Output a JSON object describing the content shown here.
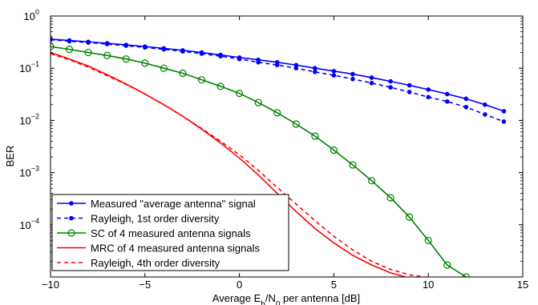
{
  "chart_data": {
    "type": "line",
    "xlabel": "Average E_b/N_0 per antenna [dB]",
    "ylabel": "BER",
    "xlim": [
      -10,
      15
    ],
    "ylim": [
      1e-05,
      1
    ],
    "yscale": "log",
    "grid": false,
    "legend_position": "bottom-left",
    "x_ticks": [
      "−10",
      "−5",
      "0",
      "5",
      "10",
      "15"
    ],
    "y_ticks": [
      {
        "base": "10",
        "exp": "0"
      },
      {
        "base": "10",
        "exp": "−1"
      },
      {
        "base": "10",
        "exp": "−2"
      },
      {
        "base": "10",
        "exp": "−3"
      },
      {
        "base": "10",
        "exp": "−4"
      }
    ],
    "series": [
      {
        "name": "Measured \"average antenna\" signal",
        "color": "#0000ff",
        "style": "solid",
        "marker": "dot",
        "x": [
          -10,
          -9,
          -8,
          -7,
          -6,
          -5,
          -4,
          -3,
          -2,
          -1,
          0,
          1,
          2,
          3,
          4,
          5,
          6,
          7,
          8,
          9,
          10,
          11,
          12,
          13,
          14
        ],
        "y": [
          0.36,
          0.34,
          0.32,
          0.3,
          0.28,
          0.26,
          0.24,
          0.22,
          0.2,
          0.18,
          0.16,
          0.145,
          0.13,
          0.115,
          0.1,
          0.088,
          0.077,
          0.066,
          0.056,
          0.047,
          0.039,
          0.032,
          0.026,
          0.02,
          0.015
        ]
      },
      {
        "name": "Rayleigh, 1st order diversity",
        "color": "#0000ff",
        "style": "dashed",
        "marker": "dot",
        "x": [
          -10,
          -9,
          -8,
          -7,
          -6,
          -5,
          -4,
          -3,
          -2,
          -1,
          0,
          1,
          2,
          3,
          4,
          5,
          6,
          7,
          8,
          9,
          10,
          11,
          12,
          13,
          14
        ],
        "y": [
          0.35,
          0.33,
          0.31,
          0.29,
          0.27,
          0.25,
          0.23,
          0.21,
          0.19,
          0.17,
          0.15,
          0.13,
          0.115,
          0.1,
          0.085,
          0.073,
          0.062,
          0.052,
          0.043,
          0.035,
          0.028,
          0.023,
          0.018,
          0.013,
          0.0095
        ]
      },
      {
        "name": "SC of 4 measured antenna signals",
        "color": "#008000",
        "style": "solid",
        "marker": "circle",
        "x": [
          -10,
          -9,
          -8,
          -7,
          -6,
          -5,
          -4,
          -3,
          -2,
          -1,
          0,
          1,
          2,
          3,
          4,
          5,
          6,
          7,
          8,
          9,
          10,
          11,
          12
        ],
        "y": [
          0.26,
          0.23,
          0.2,
          0.175,
          0.15,
          0.125,
          0.1,
          0.08,
          0.06,
          0.045,
          0.033,
          0.022,
          0.014,
          0.0085,
          0.005,
          0.0027,
          0.0014,
          0.0007,
          0.00033,
          0.00014,
          5e-05,
          1.7e-05,
          1e-05
        ]
      },
      {
        "name": "MRC of 4 measured antenna signals",
        "color": "#ff0000",
        "style": "solid",
        "marker": "none",
        "x": [
          -10,
          -9,
          -8,
          -7,
          -6,
          -5,
          -4,
          -3,
          -2,
          -1,
          0,
          1,
          2,
          3,
          4,
          5,
          6,
          7,
          8,
          8.8
        ],
        "y": [
          0.2,
          0.15,
          0.11,
          0.075,
          0.05,
          0.032,
          0.02,
          0.012,
          0.0068,
          0.0037,
          0.0019,
          0.0009,
          0.0004,
          0.00018,
          8.5e-05,
          4.5e-05,
          2.6e-05,
          1.7e-05,
          1.2e-05,
          1e-05
        ]
      },
      {
        "name": "Rayleigh, 4th order diversity",
        "color": "#ff0000",
        "style": "dashed",
        "marker": "none",
        "x": [
          -10,
          -9,
          -8,
          -7,
          -6,
          -5,
          -4,
          -3,
          -2,
          -1,
          0,
          1,
          2,
          3,
          4,
          5,
          6,
          7,
          8,
          9,
          9.8
        ],
        "y": [
          0.19,
          0.145,
          0.105,
          0.072,
          0.049,
          0.032,
          0.02,
          0.012,
          0.007,
          0.004,
          0.0022,
          0.0011,
          0.00052,
          0.00025,
          0.00012,
          6e-05,
          3.3e-05,
          2e-05,
          1.4e-05,
          1.1e-05,
          1e-05
        ]
      }
    ]
  }
}
